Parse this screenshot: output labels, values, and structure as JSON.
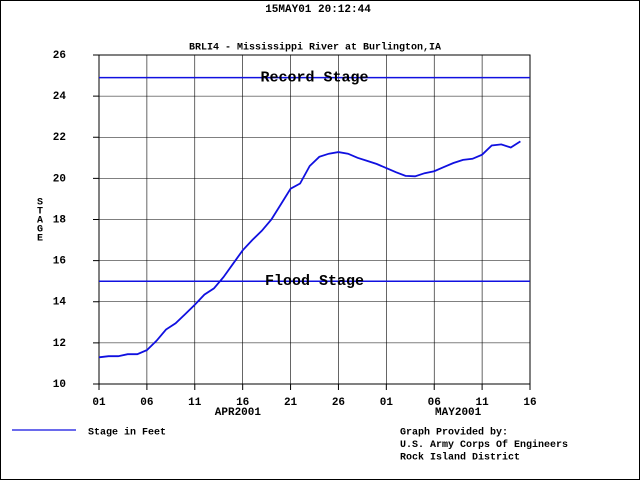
{
  "chart_data": {
    "type": "line",
    "header": "15MAY01  20:12:44",
    "title": "BRLI4 - Mississippi River at Burlington,IA",
    "y_label": "STAGE",
    "x": [
      "2001-04-01",
      "2001-04-02",
      "2001-04-03",
      "2001-04-04",
      "2001-04-05",
      "2001-04-06",
      "2001-04-07",
      "2001-04-08",
      "2001-04-09",
      "2001-04-10",
      "2001-04-11",
      "2001-04-12",
      "2001-04-13",
      "2001-04-14",
      "2001-04-15",
      "2001-04-16",
      "2001-04-17",
      "2001-04-18",
      "2001-04-19",
      "2001-04-20",
      "2001-04-21",
      "2001-04-22",
      "2001-04-23",
      "2001-04-24",
      "2001-04-25",
      "2001-04-26",
      "2001-04-27",
      "2001-04-28",
      "2001-04-29",
      "2001-04-30",
      "2001-05-01",
      "2001-05-02",
      "2001-05-03",
      "2001-05-04",
      "2001-05-05",
      "2001-05-06",
      "2001-05-07",
      "2001-05-08",
      "2001-05-09",
      "2001-05-10",
      "2001-05-11",
      "2001-05-12",
      "2001-05-13",
      "2001-05-14",
      "2001-05-15"
    ],
    "series": [
      {
        "name": "Stage in Feet",
        "color": "#1010e0",
        "values": [
          11.3,
          11.35,
          11.35,
          11.45,
          11.45,
          11.65,
          12.1,
          12.65,
          12.95,
          13.4,
          13.85,
          14.35,
          14.65,
          15.2,
          15.85,
          16.5,
          17.0,
          17.45,
          18.0,
          18.75,
          19.5,
          19.75,
          20.6,
          21.05,
          21.2,
          21.28,
          21.2,
          21.0,
          20.85,
          20.7,
          20.5,
          20.3,
          20.12,
          20.1,
          20.25,
          20.35,
          20.55,
          20.75,
          20.9,
          20.95,
          21.15,
          21.6,
          21.65,
          21.5,
          21.8
        ]
      }
    ],
    "reference_lines": [
      {
        "value": 24.9,
        "label": "Record Stage",
        "color": "#1010e0"
      },
      {
        "value": 15.0,
        "label": "Flood Stage",
        "color": "#1010e0"
      }
    ],
    "xlim": [
      "2001-04-01",
      "2001-05-16"
    ],
    "xticks": [
      {
        "value": "2001-04-01",
        "label": "01"
      },
      {
        "value": "2001-04-06",
        "label": "06"
      },
      {
        "value": "2001-04-11",
        "label": "11"
      },
      {
        "value": "2001-04-16",
        "label": "16"
      },
      {
        "value": "2001-04-21",
        "label": "21"
      },
      {
        "value": "2001-04-26",
        "label": "26"
      },
      {
        "value": "2001-05-01",
        "label": "01"
      },
      {
        "value": "2001-05-06",
        "label": "06"
      },
      {
        "value": "2001-05-11",
        "label": "11"
      },
      {
        "value": "2001-05-16",
        "label": "16"
      }
    ],
    "x_groups": [
      {
        "start": "2001-04-01",
        "end": "2001-04-30",
        "label": "APR2001"
      },
      {
        "start": "2001-05-01",
        "end": "2001-05-16",
        "label": "MAY2001"
      }
    ],
    "ylim": [
      10,
      26
    ],
    "yticks": [
      10,
      12,
      14,
      16,
      18,
      20,
      22,
      24,
      26
    ],
    "grid": true,
    "credit": [
      "Graph Provided by:",
      "U.S. Army Corps Of Engineers",
      "Rock Island District"
    ]
  }
}
